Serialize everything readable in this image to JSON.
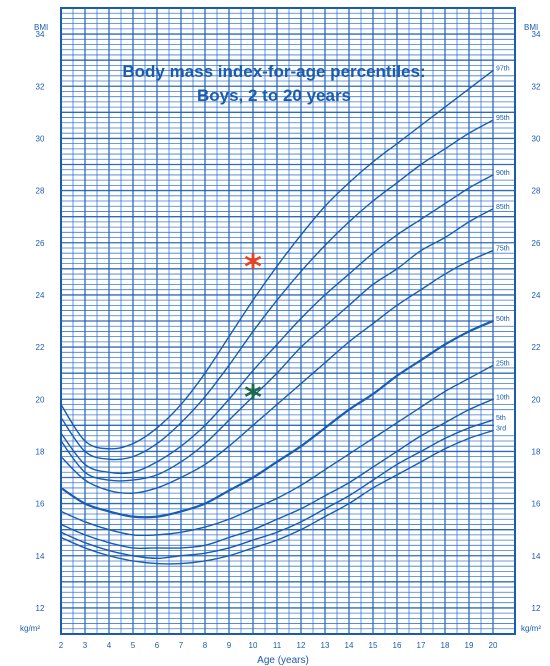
{
  "chart_data": {
    "type": "line",
    "title_line1": "Body mass index-for-age percentiles:",
    "title_line2": "Boys, 2 to 20 years",
    "xlabel": "Age (years)",
    "ylabel": "BMI",
    "unit_label": "kg/m²",
    "xlim": [
      2,
      20
    ],
    "ylim": [
      11,
      35
    ],
    "x_ticks": [
      2,
      3,
      4,
      5,
      6,
      7,
      8,
      9,
      10,
      11,
      12,
      13,
      14,
      15,
      16,
      17,
      18,
      19,
      20
    ],
    "y_ticks": [
      12,
      14,
      16,
      18,
      20,
      22,
      24,
      26,
      28,
      30,
      32,
      34
    ],
    "grid": true,
    "x": [
      2,
      3,
      4,
      5,
      6,
      7,
      8,
      9,
      10,
      11,
      12,
      13,
      14,
      15,
      16,
      17,
      18,
      19,
      20
    ],
    "series": [
      {
        "name": "97th",
        "values": [
          19.8,
          18.4,
          18.1,
          18.3,
          18.9,
          19.8,
          21.0,
          22.4,
          23.8,
          25.1,
          26.3,
          27.4,
          28.3,
          29.1,
          29.8,
          30.5,
          31.2,
          31.9,
          32.6
        ]
      },
      {
        "name": "95th",
        "values": [
          19.3,
          18.0,
          17.7,
          17.8,
          18.3,
          19.1,
          20.1,
          21.3,
          22.6,
          23.8,
          24.9,
          25.9,
          26.8,
          27.6,
          28.3,
          29.0,
          29.6,
          30.2,
          30.7
        ]
      },
      {
        "name": "90th",
        "values": [
          18.7,
          17.5,
          17.2,
          17.2,
          17.6,
          18.2,
          19.0,
          20.0,
          21.1,
          22.1,
          23.1,
          24.0,
          24.8,
          25.6,
          26.3,
          26.9,
          27.5,
          28.1,
          28.6
        ]
      },
      {
        "name": "85th",
        "values": [
          18.4,
          17.2,
          16.9,
          16.9,
          17.1,
          17.6,
          18.3,
          19.2,
          20.1,
          21.0,
          22.0,
          22.8,
          23.6,
          24.4,
          25.0,
          25.7,
          26.2,
          26.8,
          27.3
        ]
      },
      {
        "name": "75th",
        "values": [
          17.8,
          16.9,
          16.5,
          16.4,
          16.6,
          17.0,
          17.5,
          18.2,
          19.0,
          19.8,
          20.6,
          21.4,
          22.2,
          22.9,
          23.6,
          24.2,
          24.8,
          25.3,
          25.7
        ]
      },
      {
        "name": "50th",
        "values": [
          16.6,
          16.0,
          15.7,
          15.5,
          15.5,
          15.7,
          16.0,
          16.5,
          17.0,
          17.6,
          18.2,
          18.9,
          19.6,
          20.2,
          20.9,
          21.5,
          22.1,
          22.6,
          23.0
        ]
      },
      {
        "name": "25th",
        "values": [
          15.7,
          15.3,
          15.0,
          14.8,
          14.8,
          14.9,
          15.1,
          15.4,
          15.8,
          16.2,
          16.7,
          17.3,
          17.9,
          18.5,
          19.1,
          19.7,
          20.3,
          20.8,
          21.3
        ]
      },
      {
        "name": "10th",
        "values": [
          15.2,
          14.8,
          14.5,
          14.3,
          14.3,
          14.3,
          14.4,
          14.7,
          15.0,
          15.4,
          15.8,
          16.3,
          16.8,
          17.4,
          18.0,
          18.6,
          19.1,
          19.6,
          20.0
        ]
      },
      {
        "name": "5th",
        "values": [
          14.9,
          14.5,
          14.2,
          14.0,
          13.9,
          14.0,
          14.1,
          14.3,
          14.6,
          14.9,
          15.3,
          15.8,
          16.3,
          16.9,
          17.5,
          18.0,
          18.5,
          18.9,
          19.2
        ]
      },
      {
        "name": "3rd",
        "values": [
          14.7,
          14.3,
          14.0,
          13.8,
          13.7,
          13.7,
          13.8,
          14.0,
          14.3,
          14.6,
          15.0,
          15.5,
          16.0,
          16.6,
          17.1,
          17.6,
          18.1,
          18.5,
          18.8
        ]
      }
    ],
    "markers": [
      {
        "x": 10,
        "y": 25.2,
        "symbol": "*",
        "color": "#e8431f"
      },
      {
        "x": 10,
        "y": 20.2,
        "symbol": "*",
        "color": "#1b6b4a"
      }
    ]
  }
}
